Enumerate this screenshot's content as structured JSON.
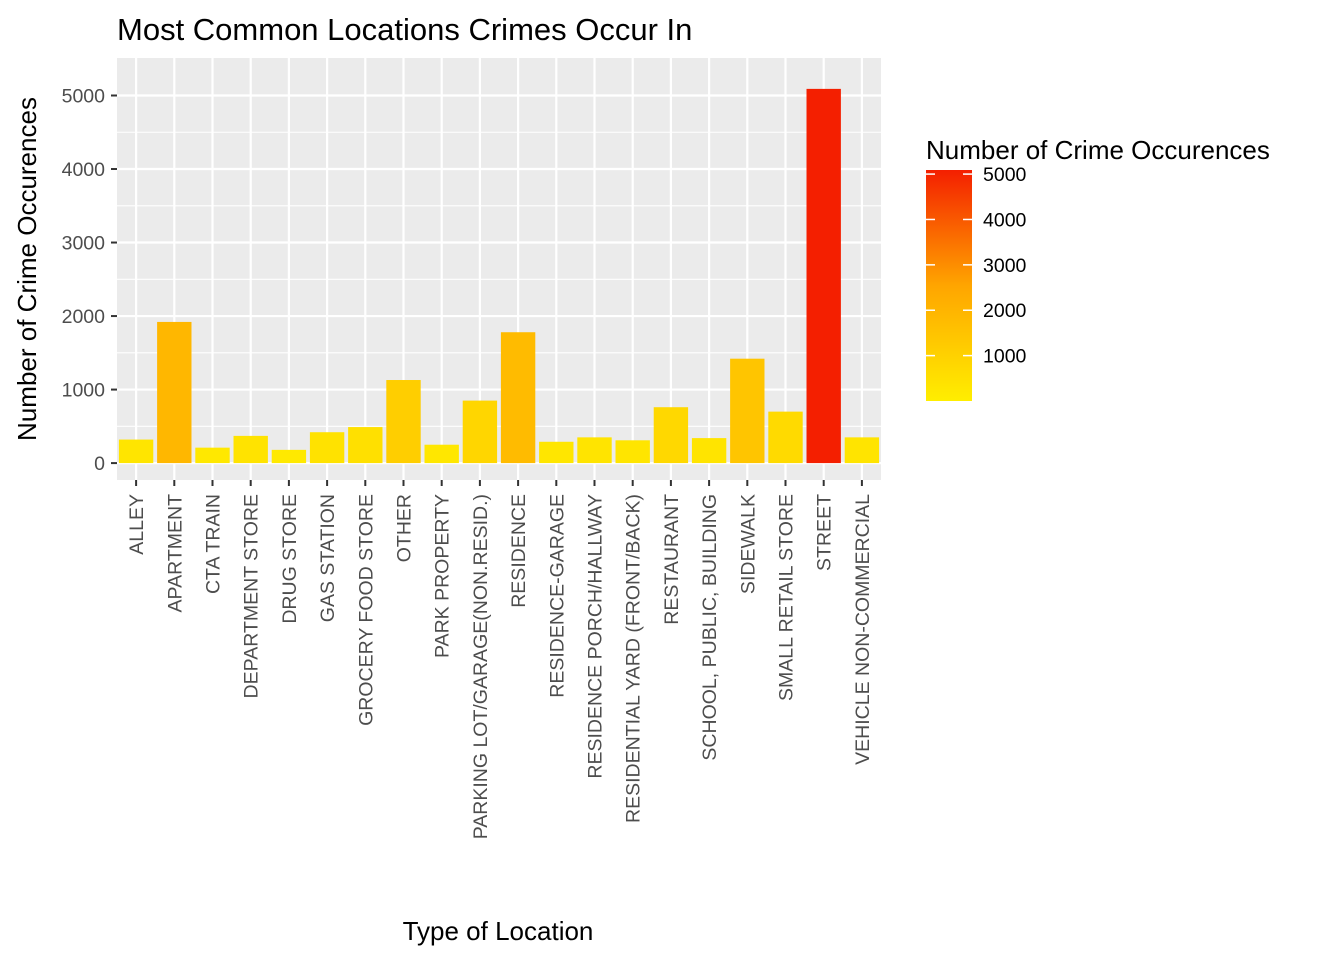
{
  "chart_data": {
    "type": "bar",
    "title": "Most Common Locations Crimes Occur In",
    "xlabel": "Type of Location",
    "ylabel": "Number of Crime Occurences",
    "categories": [
      "ALLEY",
      "APARTMENT",
      "CTA TRAIN",
      "DEPARTMENT STORE",
      "DRUG STORE",
      "GAS STATION",
      "GROCERY FOOD STORE",
      "OTHER",
      "PARK PROPERTY",
      "PARKING LOT/GARAGE(NON.RESID.)",
      "RESIDENCE",
      "RESIDENCE-GARAGE",
      "RESIDENCE PORCH/HALLWAY",
      "RESIDENTIAL YARD (FRONT/BACK)",
      "RESTAURANT",
      "SCHOOL, PUBLIC, BUILDING",
      "SIDEWALK",
      "SMALL RETAIL STORE",
      "STREET",
      "VEHICLE NON-COMMERCIAL"
    ],
    "values": [
      320,
      1920,
      210,
      370,
      180,
      420,
      490,
      1130,
      250,
      850,
      1780,
      290,
      350,
      310,
      760,
      340,
      1420,
      700,
      5090,
      350
    ],
    "ylim": [
      -230,
      5510
    ],
    "yticks": [
      0,
      1000,
      2000,
      3000,
      4000,
      5000
    ],
    "ytick_labels": [
      "0",
      "1000",
      "2000",
      "3000",
      "4000",
      "5000"
    ],
    "grid": true,
    "legend": {
      "title": "Number of Crime Occurences",
      "placement": "right",
      "min": 0,
      "max": 5090,
      "ticks": [
        1000,
        2000,
        3000,
        4000,
        5000
      ],
      "tick_labels": [
        "1000",
        "2000",
        "3000",
        "4000",
        "5000"
      ],
      "low_color": "#FFEE00",
      "mid_color": "#FFA500",
      "high_color": "#F41F00"
    },
    "panel_background": "#EBEBEB",
    "grid_color": "#FFFFFF"
  }
}
